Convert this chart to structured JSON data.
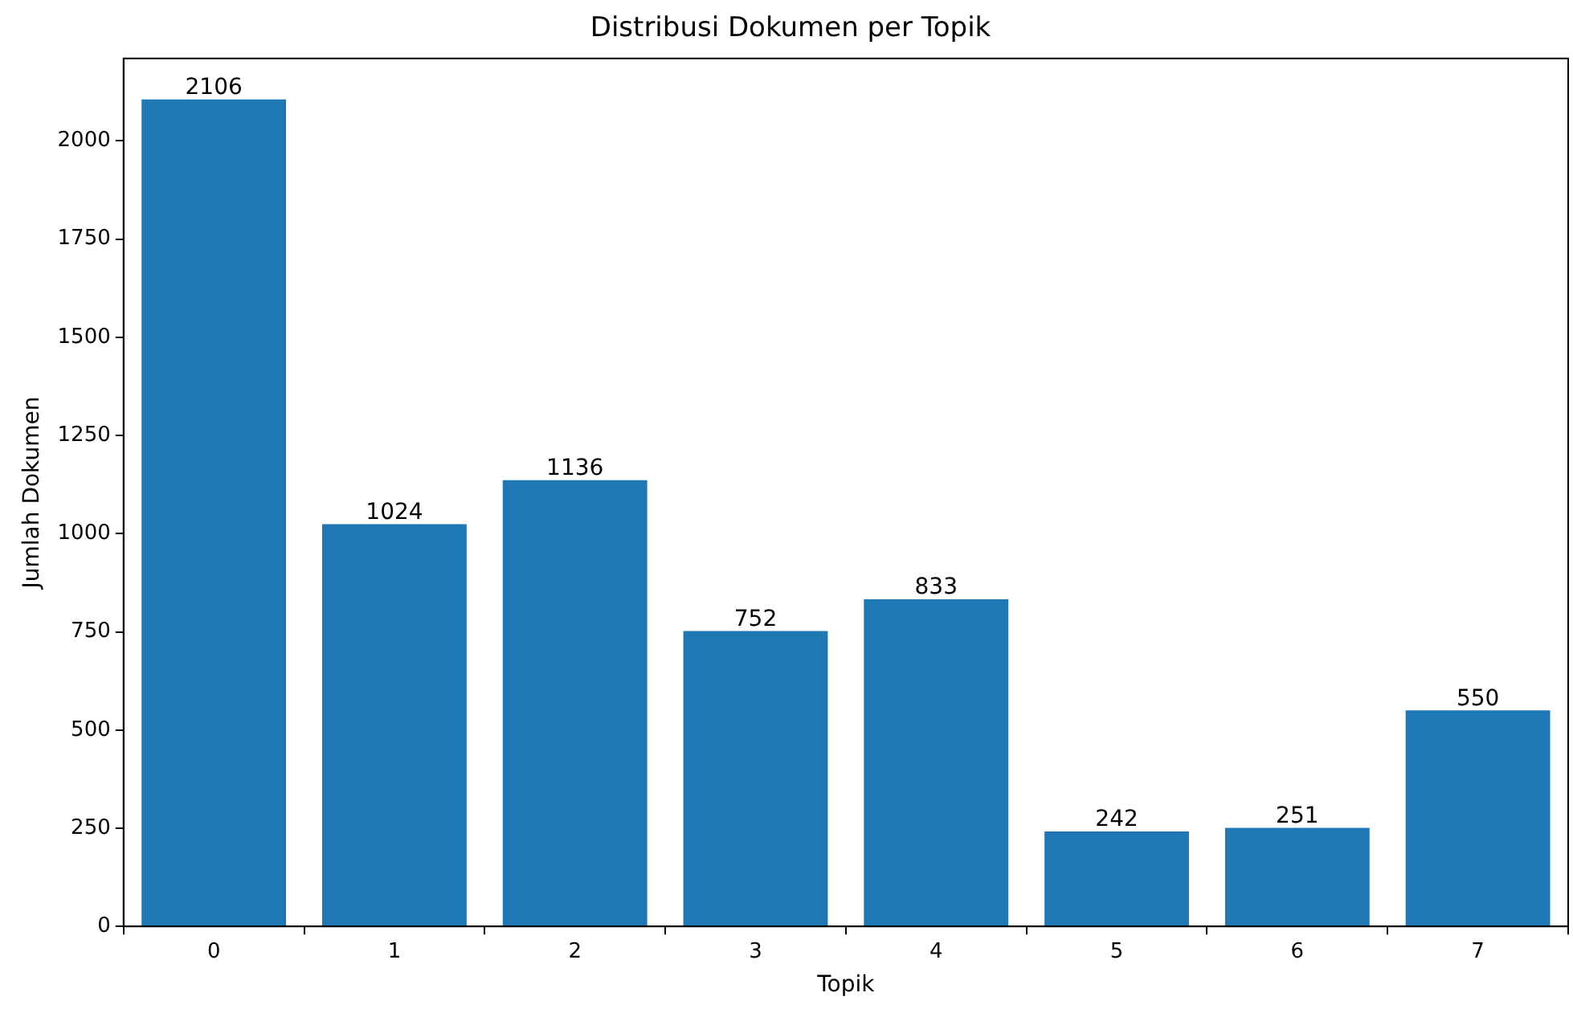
{
  "chart_data": {
    "type": "bar",
    "title": "Distribusi Dokumen per Topik",
    "xlabel": "Topik",
    "ylabel": "Jumlah Dokumen",
    "categories": [
      "0",
      "1",
      "2",
      "3",
      "4",
      "5",
      "6",
      "7"
    ],
    "values": [
      2106,
      1024,
      1136,
      752,
      833,
      242,
      251,
      550
    ],
    "color": "#1f77b4",
    "ylim": [
      0,
      2210
    ],
    "yticks": [
      0,
      250,
      500,
      750,
      1000,
      1250,
      1500,
      1750,
      2000
    ],
    "grid": false,
    "legend": false,
    "data_labels": true
  }
}
